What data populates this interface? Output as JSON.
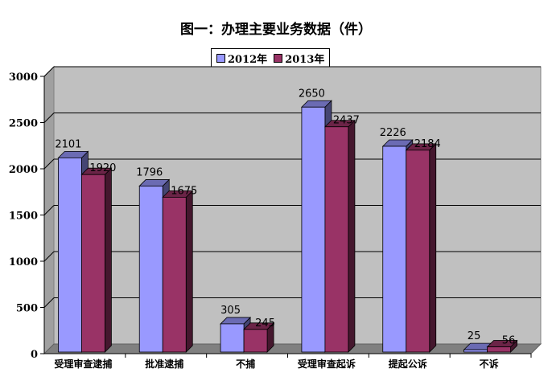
{
  "chart_data": {
    "type": "bar",
    "title": "图一：办理主要业务数据（件）",
    "categories": [
      "受理审查逮捕",
      "批准逮捕",
      "不捕",
      "受理审查起诉",
      "提起公诉",
      "不诉"
    ],
    "series": [
      {
        "name": "2012年",
        "values": [
          2101,
          1796,
          305,
          2650,
          2226,
          25
        ],
        "color": "#9999ff"
      },
      {
        "name": "2013年",
        "values": [
          1920,
          1675,
          245,
          2437,
          2184,
          56
        ],
        "color": "#993366"
      }
    ],
    "ylim": [
      0,
      3000
    ],
    "yticks": [
      0,
      500,
      1000,
      1500,
      2000,
      2500,
      3000
    ],
    "grid": true,
    "legend_position": "top",
    "plot_background": "#c0c0c0"
  }
}
